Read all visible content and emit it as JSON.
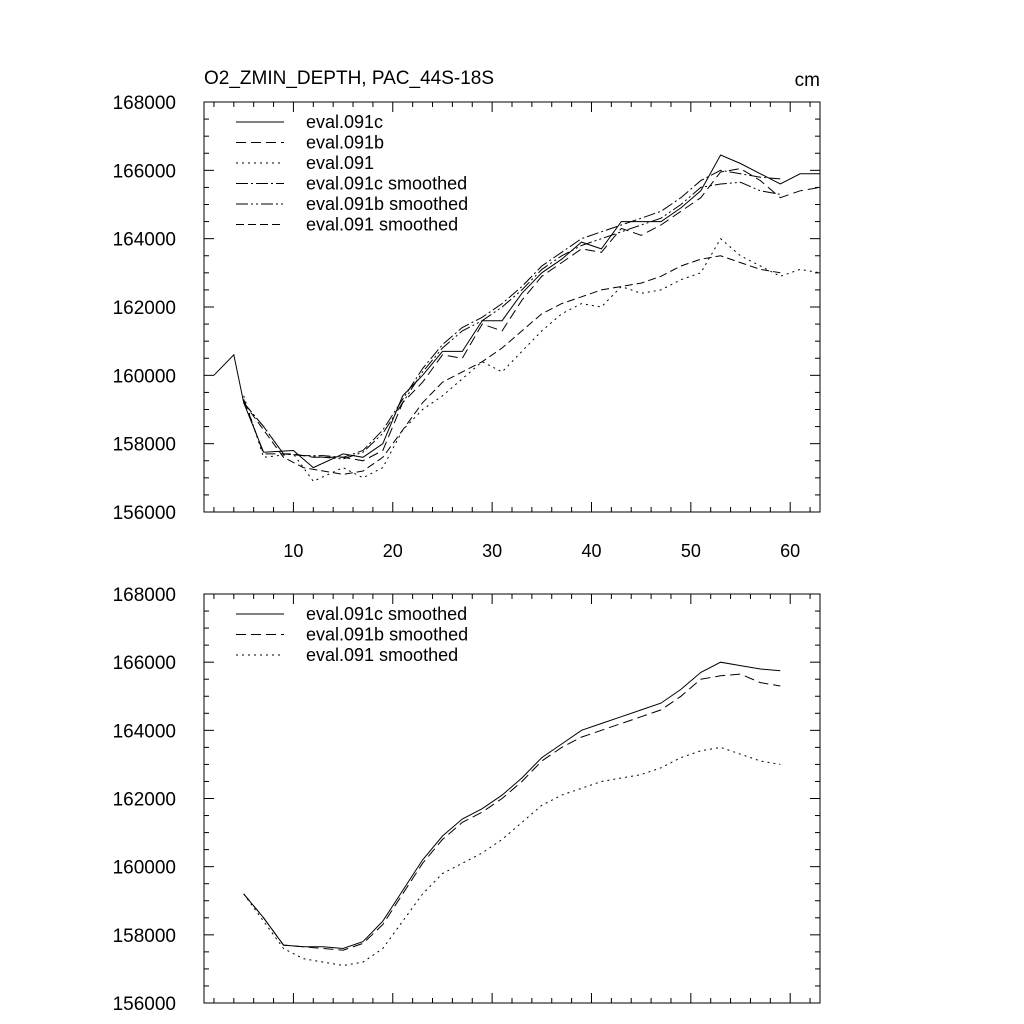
{
  "title": "O2_ZMIN_DEPTH, PAC_44S-18S",
  "units": "cm",
  "chart_data": [
    {
      "type": "line",
      "xlim": [
        1,
        63
      ],
      "ylim": [
        156000,
        168000
      ],
      "xticks": [
        10,
        20,
        30,
        40,
        50,
        60
      ],
      "yticks": [
        156000,
        158000,
        160000,
        162000,
        164000,
        166000,
        168000
      ],
      "show_xtick_labels": true,
      "legend_position": "top-left",
      "series": [
        {
          "name": "eval.091c",
          "dash": "",
          "x": [
            2,
            4,
            5,
            7,
            10,
            12,
            15,
            17,
            19,
            21,
            23,
            25,
            27,
            29,
            31,
            33,
            35,
            37,
            39,
            41,
            43,
            45,
            47,
            49,
            51,
            53,
            55,
            57,
            59,
            61,
            63
          ],
          "y": [
            160000,
            160600,
            159200,
            157750,
            157800,
            157300,
            157700,
            157600,
            158000,
            159400,
            160000,
            160700,
            160700,
            161600,
            161600,
            162400,
            163000,
            163400,
            163900,
            163700,
            164500,
            164500,
            164500,
            164900,
            165400,
            166450,
            166200,
            165900,
            165600,
            165900,
            165900
          ]
        },
        {
          "name": "eval.091b",
          "dash": "10,5",
          "x": [
            5,
            7,
            10,
            12,
            15,
            17,
            19,
            21,
            23,
            25,
            27,
            29,
            31,
            33,
            35,
            37,
            39,
            41,
            43,
            45,
            47,
            49,
            51,
            53,
            55,
            57,
            59,
            61,
            63
          ],
          "y": [
            159300,
            157700,
            157700,
            157600,
            157600,
            157500,
            157800,
            159200,
            159800,
            160600,
            160500,
            161500,
            161300,
            162200,
            162900,
            163300,
            163700,
            163600,
            164300,
            164100,
            164400,
            164800,
            165200,
            165950,
            166050,
            165700,
            165200,
            165400,
            165500
          ]
        },
        {
          "name": "eval.091",
          "dash": "2,4",
          "x": [
            5,
            7,
            10,
            12,
            15,
            17,
            19,
            21,
            23,
            25,
            27,
            29,
            31,
            33,
            35,
            37,
            39,
            41,
            43,
            45,
            47,
            49,
            51,
            53,
            55,
            57,
            59,
            61,
            63
          ],
          "y": [
            159400,
            157600,
            157700,
            156900,
            157300,
            157000,
            157300,
            158400,
            159000,
            159400,
            159900,
            160400,
            160100,
            160700,
            161300,
            161800,
            162100,
            162000,
            162600,
            162400,
            162500,
            162800,
            163000,
            164000,
            163500,
            163200,
            162900,
            163100,
            163000
          ]
        },
        {
          "name": "eval.091c smoothed",
          "dash": "12,3,2,3",
          "x": [
            5,
            7,
            9,
            11,
            13,
            15,
            17,
            19,
            21,
            23,
            25,
            27,
            29,
            31,
            33,
            35,
            37,
            39,
            41,
            43,
            45,
            47,
            49,
            51,
            53,
            55,
            57,
            59
          ],
          "y": [
            159200,
            158500,
            157700,
            157650,
            157650,
            157600,
            157800,
            158400,
            159300,
            160200,
            160900,
            161400,
            161700,
            162100,
            162600,
            163200,
            163600,
            164000,
            164200,
            164400,
            164600,
            164800,
            165200,
            165700,
            166000,
            165900,
            165800,
            165750
          ]
        },
        {
          "name": "eval.091b smoothed",
          "dash": "12,3,2,3,2,3",
          "x": [
            5,
            7,
            9,
            11,
            13,
            15,
            17,
            19,
            21,
            23,
            25,
            27,
            29,
            31,
            33,
            35,
            37,
            39,
            41,
            43,
            45,
            47,
            49,
            51,
            53,
            55,
            57,
            59
          ],
          "y": [
            159200,
            158500,
            157700,
            157650,
            157600,
            157550,
            157750,
            158300,
            159200,
            160100,
            160800,
            161300,
            161600,
            162000,
            162500,
            163100,
            163500,
            163800,
            164000,
            164200,
            164400,
            164600,
            165000,
            165500,
            165600,
            165650,
            165400,
            165300
          ]
        },
        {
          "name": "eval.091 smoothed",
          "dash": "8,4",
          "x": [
            5,
            7,
            9,
            11,
            13,
            15,
            17,
            19,
            21,
            23,
            25,
            27,
            29,
            31,
            33,
            35,
            37,
            39,
            41,
            43,
            45,
            47,
            49,
            51,
            53,
            55,
            57,
            59
          ],
          "y": [
            159200,
            158400,
            157600,
            157300,
            157200,
            157100,
            157200,
            157600,
            158400,
            159200,
            159800,
            160100,
            160400,
            160800,
            161300,
            161800,
            162100,
            162300,
            162500,
            162600,
            162700,
            162900,
            163200,
            163400,
            163500,
            163300,
            163100,
            163000
          ]
        }
      ]
    },
    {
      "type": "line",
      "xlim": [
        1,
        63
      ],
      "ylim": [
        156000,
        168000
      ],
      "xticks": [
        10,
        20,
        30,
        40,
        50,
        60
      ],
      "yticks": [
        156000,
        158000,
        160000,
        162000,
        164000,
        166000,
        168000
      ],
      "show_xtick_labels": false,
      "legend_position": "top-left",
      "series": [
        {
          "name": "eval.091c smoothed",
          "dash": "",
          "x": [
            5,
            7,
            9,
            11,
            13,
            15,
            17,
            19,
            21,
            23,
            25,
            27,
            29,
            31,
            33,
            35,
            37,
            39,
            41,
            43,
            45,
            47,
            49,
            51,
            53,
            55,
            57,
            59
          ],
          "y": [
            159200,
            158500,
            157700,
            157650,
            157650,
            157600,
            157800,
            158400,
            159300,
            160200,
            160900,
            161400,
            161700,
            162100,
            162600,
            163200,
            163600,
            164000,
            164200,
            164400,
            164600,
            164800,
            165200,
            165700,
            166000,
            165900,
            165800,
            165750
          ]
        },
        {
          "name": "eval.091b smoothed",
          "dash": "10,5",
          "x": [
            5,
            7,
            9,
            11,
            13,
            15,
            17,
            19,
            21,
            23,
            25,
            27,
            29,
            31,
            33,
            35,
            37,
            39,
            41,
            43,
            45,
            47,
            49,
            51,
            53,
            55,
            57,
            59
          ],
          "y": [
            159200,
            158500,
            157700,
            157650,
            157600,
            157550,
            157750,
            158300,
            159200,
            160100,
            160800,
            161300,
            161600,
            162000,
            162500,
            163100,
            163500,
            163800,
            164000,
            164200,
            164400,
            164600,
            165000,
            165500,
            165600,
            165650,
            165400,
            165300
          ]
        },
        {
          "name": "eval.091 smoothed",
          "dash": "2,4",
          "x": [
            5,
            7,
            9,
            11,
            13,
            15,
            17,
            19,
            21,
            23,
            25,
            27,
            29,
            31,
            33,
            35,
            37,
            39,
            41,
            43,
            45,
            47,
            49,
            51,
            53,
            55,
            57,
            59
          ],
          "y": [
            159200,
            158400,
            157600,
            157300,
            157200,
            157100,
            157200,
            157600,
            158400,
            159200,
            159800,
            160100,
            160400,
            160800,
            161300,
            161800,
            162100,
            162300,
            162500,
            162600,
            162700,
            162900,
            163200,
            163400,
            163500,
            163300,
            163100,
            163000
          ]
        }
      ]
    }
  ]
}
